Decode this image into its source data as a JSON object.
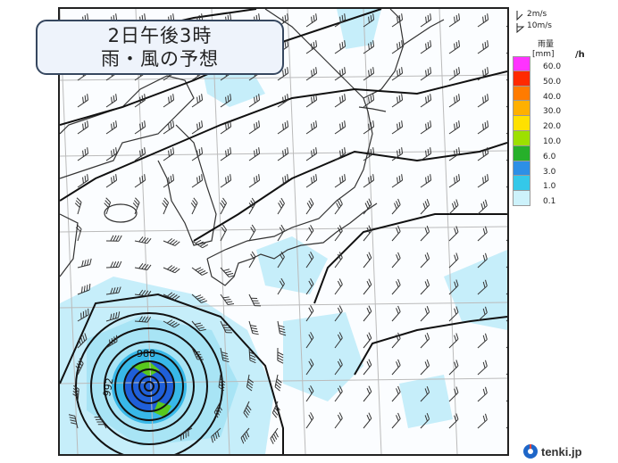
{
  "title": {
    "line1": "2日午後3時",
    "line2": "雨・風の予想"
  },
  "map": {
    "isobar_labels": [
      "988",
      "992"
    ],
    "colors": {
      "isobar": "#111111",
      "grid": "#bbbbbb",
      "coast": "#333333",
      "wind": "#333333",
      "rain_light": "#a8e4f5",
      "rain_mid": "#38b8e8",
      "rain_heavy": "#1f5fd8",
      "rain_green": "#58c81e"
    }
  },
  "legend": {
    "wind_keys": [
      "2m/s",
      "10m/s"
    ],
    "title": "雨量",
    "unit": "[mm]",
    "per": "/h",
    "levels": [
      {
        "label": "60.0",
        "color": "#ff33ff"
      },
      {
        "label": "50.0",
        "color": "#ff2a00"
      },
      {
        "label": "40.0",
        "color": "#ff7b00"
      },
      {
        "label": "30.0",
        "color": "#ffb000"
      },
      {
        "label": "20.0",
        "color": "#ffe100"
      },
      {
        "label": "10.0",
        "color": "#9de000"
      },
      {
        "label": "6.0",
        "color": "#26b02a"
      },
      {
        "label": "3.0",
        "color": "#2d8fe6"
      },
      {
        "label": "1.0",
        "color": "#34c8e9"
      },
      {
        "label": "0.1",
        "color": "#cdf2fb"
      }
    ]
  },
  "logo": {
    "text": "tenki.jp",
    "icon": "tenki-logo-icon"
  }
}
